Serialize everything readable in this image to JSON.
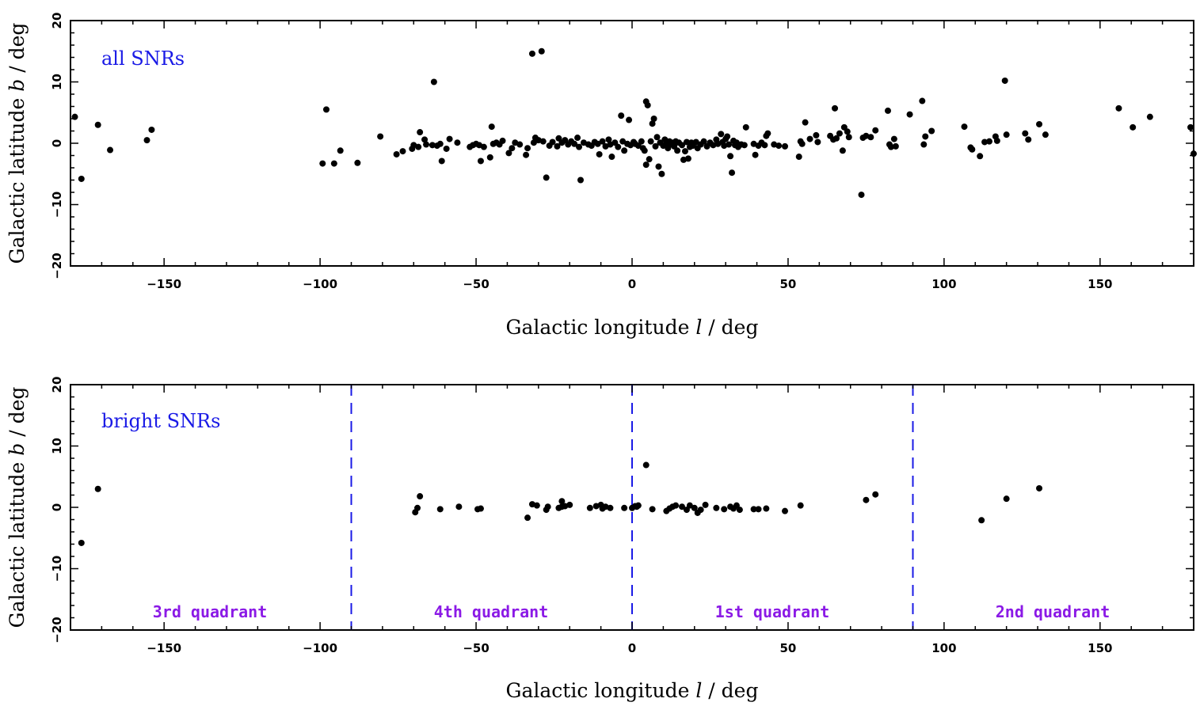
{
  "chart_data": [
    {
      "type": "scatter",
      "label": "all SNRs",
      "xlabel": "Galactic longitude",
      "xlabel_var": "l",
      "xlabel_unit": "/ deg",
      "ylabel": "Galactic latitude",
      "ylabel_var": "b",
      "ylabel_unit": "/ deg",
      "xlim": [
        -180,
        180
      ],
      "ylim": [
        -20,
        20
      ],
      "xticks": [
        "−150",
        "−100",
        "−50",
        "0",
        "50",
        "100",
        "150"
      ],
      "yticks": [
        "20",
        "10",
        "0",
        "−10",
        "−20"
      ],
      "colors": {
        "label": "#1a1ae6",
        "points": "#000000"
      },
      "points": [
        [
          -178.6,
          4.3
        ],
        [
          -176.5,
          -5.8
        ],
        [
          -171.2,
          3.0
        ],
        [
          -167.3,
          -1.1
        ],
        [
          -155.5,
          0.5
        ],
        [
          -154.0,
          2.2
        ],
        [
          -99.2,
          -3.3
        ],
        [
          -98.0,
          5.5
        ],
        [
          -95.5,
          -3.3
        ],
        [
          -93.5,
          -1.2
        ],
        [
          -88.0,
          -3.2
        ],
        [
          -80.7,
          1.1
        ],
        [
          -75.5,
          -1.8
        ],
        [
          -73.5,
          -1.3
        ],
        [
          -70.5,
          -0.9
        ],
        [
          -70.0,
          -0.3
        ],
        [
          -68.5,
          -0.6
        ],
        [
          -68.0,
          1.8
        ],
        [
          -66.5,
          0.6
        ],
        [
          -66.0,
          -0.2
        ],
        [
          -64.0,
          -0.3
        ],
        [
          -63.5,
          10.0
        ],
        [
          -62.5,
          -0.4
        ],
        [
          -61.5,
          -0.1
        ],
        [
          -61.0,
          -2.9
        ],
        [
          -59.5,
          -0.9
        ],
        [
          -58.5,
          0.7
        ],
        [
          -56.0,
          0.1
        ],
        [
          -52.0,
          -0.6
        ],
        [
          -51.0,
          -0.3
        ],
        [
          -50.0,
          -0.1
        ],
        [
          -49.0,
          -0.3
        ],
        [
          -48.5,
          -2.9
        ],
        [
          -47.5,
          -0.6
        ],
        [
          -45.5,
          -2.3
        ],
        [
          -45.0,
          2.7
        ],
        [
          -44.5,
          -0.1
        ],
        [
          -43.5,
          0.1
        ],
        [
          -42.5,
          -0.2
        ],
        [
          -41.5,
          0.4
        ],
        [
          -39.5,
          -1.6
        ],
        [
          -38.5,
          -0.8
        ],
        [
          -37.5,
          0.1
        ],
        [
          -36.0,
          -0.2
        ],
        [
          -34.0,
          -1.9
        ],
        [
          -33.5,
          -0.8
        ],
        [
          -32.0,
          14.6
        ],
        [
          -31.5,
          0.1
        ],
        [
          -31.0,
          0.9
        ],
        [
          -30.0,
          0.5
        ],
        [
          -29.0,
          15.0
        ],
        [
          -28.5,
          0.3
        ],
        [
          -27.5,
          -5.6
        ],
        [
          -26.5,
          -0.4
        ],
        [
          -25.5,
          0.2
        ],
        [
          -24.0,
          -0.5
        ],
        [
          -23.5,
          0.8
        ],
        [
          -22.5,
          0.1
        ],
        [
          -21.5,
          0.5
        ],
        [
          -20.5,
          -0.2
        ],
        [
          -19.5,
          0.3
        ],
        [
          -18.5,
          -0.1
        ],
        [
          -17.5,
          0.9
        ],
        [
          -17.0,
          -0.6
        ],
        [
          -16.5,
          -6.0
        ],
        [
          -15.5,
          0.1
        ],
        [
          -14.0,
          -0.2
        ],
        [
          -13.0,
          -0.4
        ],
        [
          -12.0,
          0.2
        ],
        [
          -11.0,
          -0.1
        ],
        [
          -10.5,
          -1.8
        ],
        [
          -9.5,
          0.3
        ],
        [
          -8.5,
          -0.5
        ],
        [
          -7.5,
          0.6
        ],
        [
          -7.0,
          -0.2
        ],
        [
          -6.5,
          -2.2
        ],
        [
          -5.5,
          0.1
        ],
        [
          -4.5,
          -0.6
        ],
        [
          -3.5,
          4.5
        ],
        [
          -3.0,
          0.3
        ],
        [
          -2.5,
          -1.2
        ],
        [
          -1.5,
          -0.1
        ],
        [
          -1.0,
          3.8
        ],
        [
          -0.5,
          -0.3
        ],
        [
          0.5,
          0.2
        ],
        [
          1.0,
          -0.1
        ],
        [
          2.0,
          -0.4
        ],
        [
          3.0,
          0.3
        ],
        [
          3.5,
          -0.8
        ],
        [
          4.0,
          -1.2
        ],
        [
          4.5,
          -3.5
        ],
        [
          4.5,
          6.8
        ],
        [
          5.0,
          6.2
        ],
        [
          5.5,
          -2.6
        ],
        [
          6.0,
          0.3
        ],
        [
          6.5,
          3.2
        ],
        [
          7.0,
          4.0
        ],
        [
          7.5,
          -0.5
        ],
        [
          8.0,
          1.0
        ],
        [
          8.5,
          -3.8
        ],
        [
          9.0,
          0.1
        ],
        [
          9.5,
          -5.0
        ],
        [
          10.0,
          -0.4
        ],
        [
          10.5,
          0.6
        ],
        [
          11.0,
          -0.1
        ],
        [
          11.5,
          -0.8
        ],
        [
          12.0,
          0.3
        ],
        [
          12.5,
          -0.2
        ],
        [
          13.0,
          0.1
        ],
        [
          13.5,
          -0.5
        ],
        [
          14.0,
          0.3
        ],
        [
          14.5,
          -1.2
        ],
        [
          15.0,
          0.1
        ],
        [
          16.0,
          -0.3
        ],
        [
          16.5,
          -2.7
        ],
        [
          17.0,
          -1.3
        ],
        [
          17.5,
          0.2
        ],
        [
          18.0,
          -2.5
        ],
        [
          18.5,
          -0.6
        ],
        [
          19.0,
          0.1
        ],
        [
          19.5,
          -0.4
        ],
        [
          20.5,
          0.2
        ],
        [
          21.0,
          -0.8
        ],
        [
          22.0,
          -0.2
        ],
        [
          23.0,
          0.3
        ],
        [
          24.0,
          -0.5
        ],
        [
          25.0,
          0.1
        ],
        [
          26.0,
          -0.3
        ],
        [
          27.0,
          0.6
        ],
        [
          27.5,
          -0.1
        ],
        [
          28.5,
          1.5
        ],
        [
          29.0,
          0.2
        ],
        [
          29.5,
          -0.4
        ],
        [
          30.0,
          0.7
        ],
        [
          30.5,
          1.1
        ],
        [
          31.0,
          -0.2
        ],
        [
          31.5,
          -2.1
        ],
        [
          32.0,
          -4.8
        ],
        [
          32.5,
          0.4
        ],
        [
          33.0,
          -0.3
        ],
        [
          33.5,
          0.1
        ],
        [
          34.0,
          -0.6
        ],
        [
          35.0,
          -0.2
        ],
        [
          36.0,
          -0.3
        ],
        [
          36.5,
          2.6
        ],
        [
          39.0,
          -0.1
        ],
        [
          39.5,
          -1.9
        ],
        [
          40.5,
          -0.4
        ],
        [
          41.5,
          0.1
        ],
        [
          42.5,
          -0.3
        ],
        [
          43.0,
          1.2
        ],
        [
          43.5,
          1.6
        ],
        [
          45.5,
          -0.2
        ],
        [
          47.0,
          -0.4
        ],
        [
          49.0,
          -0.5
        ],
        [
          53.5,
          -2.2
        ],
        [
          54.0,
          0.3
        ],
        [
          54.5,
          -0.1
        ],
        [
          55.5,
          3.4
        ],
        [
          57.0,
          0.7
        ],
        [
          59.0,
          1.3
        ],
        [
          59.5,
          0.2
        ],
        [
          63.5,
          1.2
        ],
        [
          64.5,
          0.6
        ],
        [
          65.0,
          5.7
        ],
        [
          65.5,
          0.8
        ],
        [
          66.5,
          1.6
        ],
        [
          67.5,
          -1.2
        ],
        [
          68.0,
          2.6
        ],
        [
          69.0,
          1.9
        ],
        [
          69.5,
          1.0
        ],
        [
          73.5,
          -8.4
        ],
        [
          74.0,
          0.9
        ],
        [
          75.0,
          1.2
        ],
        [
          76.5,
          1.0
        ],
        [
          78.0,
          2.1
        ],
        [
          82.0,
          5.3
        ],
        [
          82.5,
          -0.2
        ],
        [
          83.0,
          -0.6
        ],
        [
          84.0,
          0.7
        ],
        [
          84.5,
          -0.5
        ],
        [
          89.0,
          4.7
        ],
        [
          93.0,
          6.9
        ],
        [
          93.5,
          -0.2
        ],
        [
          94.0,
          1.1
        ],
        [
          96.0,
          2.0
        ],
        [
          106.5,
          2.7
        ],
        [
          108.5,
          -0.7
        ],
        [
          109.0,
          -1.0
        ],
        [
          111.5,
          -2.1
        ],
        [
          113.0,
          0.2
        ],
        [
          114.5,
          0.3
        ],
        [
          116.5,
          1.1
        ],
        [
          117.0,
          0.4
        ],
        [
          119.5,
          10.2
        ],
        [
          120.0,
          1.4
        ],
        [
          126.0,
          1.6
        ],
        [
          127.0,
          0.6
        ],
        [
          130.5,
          3.1
        ],
        [
          132.5,
          1.4
        ],
        [
          156.0,
          5.7
        ],
        [
          160.5,
          2.6
        ],
        [
          166.0,
          4.3
        ],
        [
          179.0,
          2.6
        ],
        [
          180.0,
          -1.7
        ]
      ]
    },
    {
      "type": "scatter",
      "label": "bright SNRs",
      "xlabel": "Galactic longitude",
      "xlabel_var": "l",
      "xlabel_unit": "/ deg",
      "ylabel": "Galactic latitude",
      "ylabel_var": "b",
      "ylabel_unit": "/ deg",
      "xlim": [
        -180,
        180
      ],
      "ylim": [
        -20,
        20
      ],
      "xticks": [
        "−150",
        "−100",
        "−50",
        "0",
        "50",
        "100",
        "150"
      ],
      "yticks": [
        "20",
        "10",
        "0",
        "−10",
        "−20"
      ],
      "colors": {
        "label": "#1a1ae6",
        "points": "#000000",
        "quadrant_lines": "#1a1ae6",
        "quadrant_labels": "#8b1ae6"
      },
      "quadrant_boundaries": [
        -90,
        0,
        90
      ],
      "quadrant_labels": [
        "3rd quadrant",
        "4th quadrant",
        "1st quadrant",
        "2nd quadrant"
      ],
      "points": [
        [
          -176.5,
          -5.8
        ],
        [
          -171.2,
          3.0
        ],
        [
          -69.5,
          -0.8
        ],
        [
          -68.8,
          -0.1
        ],
        [
          -68.0,
          1.8
        ],
        [
          -61.5,
          -0.3
        ],
        [
          -55.5,
          0.1
        ],
        [
          -49.5,
          -0.3
        ],
        [
          -48.5,
          -0.2
        ],
        [
          -33.5,
          -1.7
        ],
        [
          -32.0,
          0.5
        ],
        [
          -30.5,
          0.3
        ],
        [
          -27.5,
          -0.4
        ],
        [
          -27.0,
          0.1
        ],
        [
          -23.5,
          -0.1
        ],
        [
          -22.5,
          0.1
        ],
        [
          -22.5,
          1.0
        ],
        [
          -21.5,
          0.2
        ],
        [
          -20.0,
          0.4
        ],
        [
          -13.5,
          -0.1
        ],
        [
          -11.5,
          0.2
        ],
        [
          -10.0,
          0.4
        ],
        [
          -9.5,
          -0.2
        ],
        [
          -8.5,
          0.1
        ],
        [
          -7.0,
          -0.1
        ],
        [
          -2.5,
          -0.1
        ],
        [
          0.0,
          -0.1
        ],
        [
          1.0,
          0.2
        ],
        [
          1.5,
          0.1
        ],
        [
          2.0,
          0.3
        ],
        [
          4.5,
          6.9
        ],
        [
          6.5,
          -0.3
        ],
        [
          11.0,
          -0.6
        ],
        [
          12.0,
          -0.2
        ],
        [
          13.0,
          0.1
        ],
        [
          14.0,
          0.3
        ],
        [
          16.0,
          0.1
        ],
        [
          17.5,
          -0.4
        ],
        [
          18.5,
          0.3
        ],
        [
          20.0,
          -0.1
        ],
        [
          21.0,
          -0.9
        ],
        [
          22.0,
          -0.4
        ],
        [
          23.5,
          0.4
        ],
        [
          27.0,
          -0.1
        ],
        [
          29.5,
          -0.3
        ],
        [
          31.5,
          0.1
        ],
        [
          32.5,
          -0.2
        ],
        [
          33.5,
          0.3
        ],
        [
          34.5,
          -0.4
        ],
        [
          39.0,
          -0.3
        ],
        [
          40.5,
          -0.3
        ],
        [
          43.0,
          -0.2
        ],
        [
          49.0,
          -0.6
        ],
        [
          54.0,
          0.3
        ],
        [
          75.0,
          1.2
        ],
        [
          78.0,
          2.1
        ],
        [
          112.0,
          -2.1
        ],
        [
          120.0,
          1.4
        ],
        [
          130.5,
          3.1
        ]
      ]
    }
  ]
}
